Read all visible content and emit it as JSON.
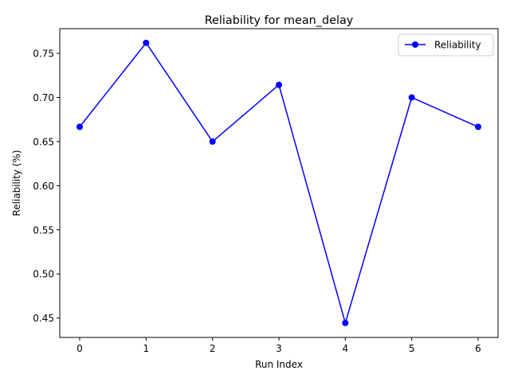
{
  "chart_data": {
    "type": "line",
    "title": "Reliability for mean_delay",
    "xlabel": "Run Index",
    "ylabel": "Reliability (%)",
    "x": [
      0,
      1,
      2,
      3,
      4,
      5,
      6
    ],
    "series": [
      {
        "name": "Reliability",
        "values": [
          0.6667,
          0.7619,
          0.65,
          0.7143,
          0.4444,
          0.7,
          0.6667
        ],
        "color": "#0000ff",
        "marker": "circle"
      }
    ],
    "xlim": [
      -0.3,
      6.3
    ],
    "ylim": [
      0.428,
      0.778
    ],
    "xticks": [
      0,
      1,
      2,
      3,
      4,
      5,
      6
    ],
    "xtick_labels": [
      "0",
      "1",
      "2",
      "3",
      "4",
      "5",
      "6"
    ],
    "yticks": [
      0.45,
      0.5,
      0.55,
      0.6,
      0.65,
      0.7,
      0.75
    ],
    "ytick_labels": [
      "0.45",
      "0.50",
      "0.55",
      "0.60",
      "0.65",
      "0.70",
      "0.75"
    ],
    "grid": false,
    "legend_position": "top-right"
  }
}
